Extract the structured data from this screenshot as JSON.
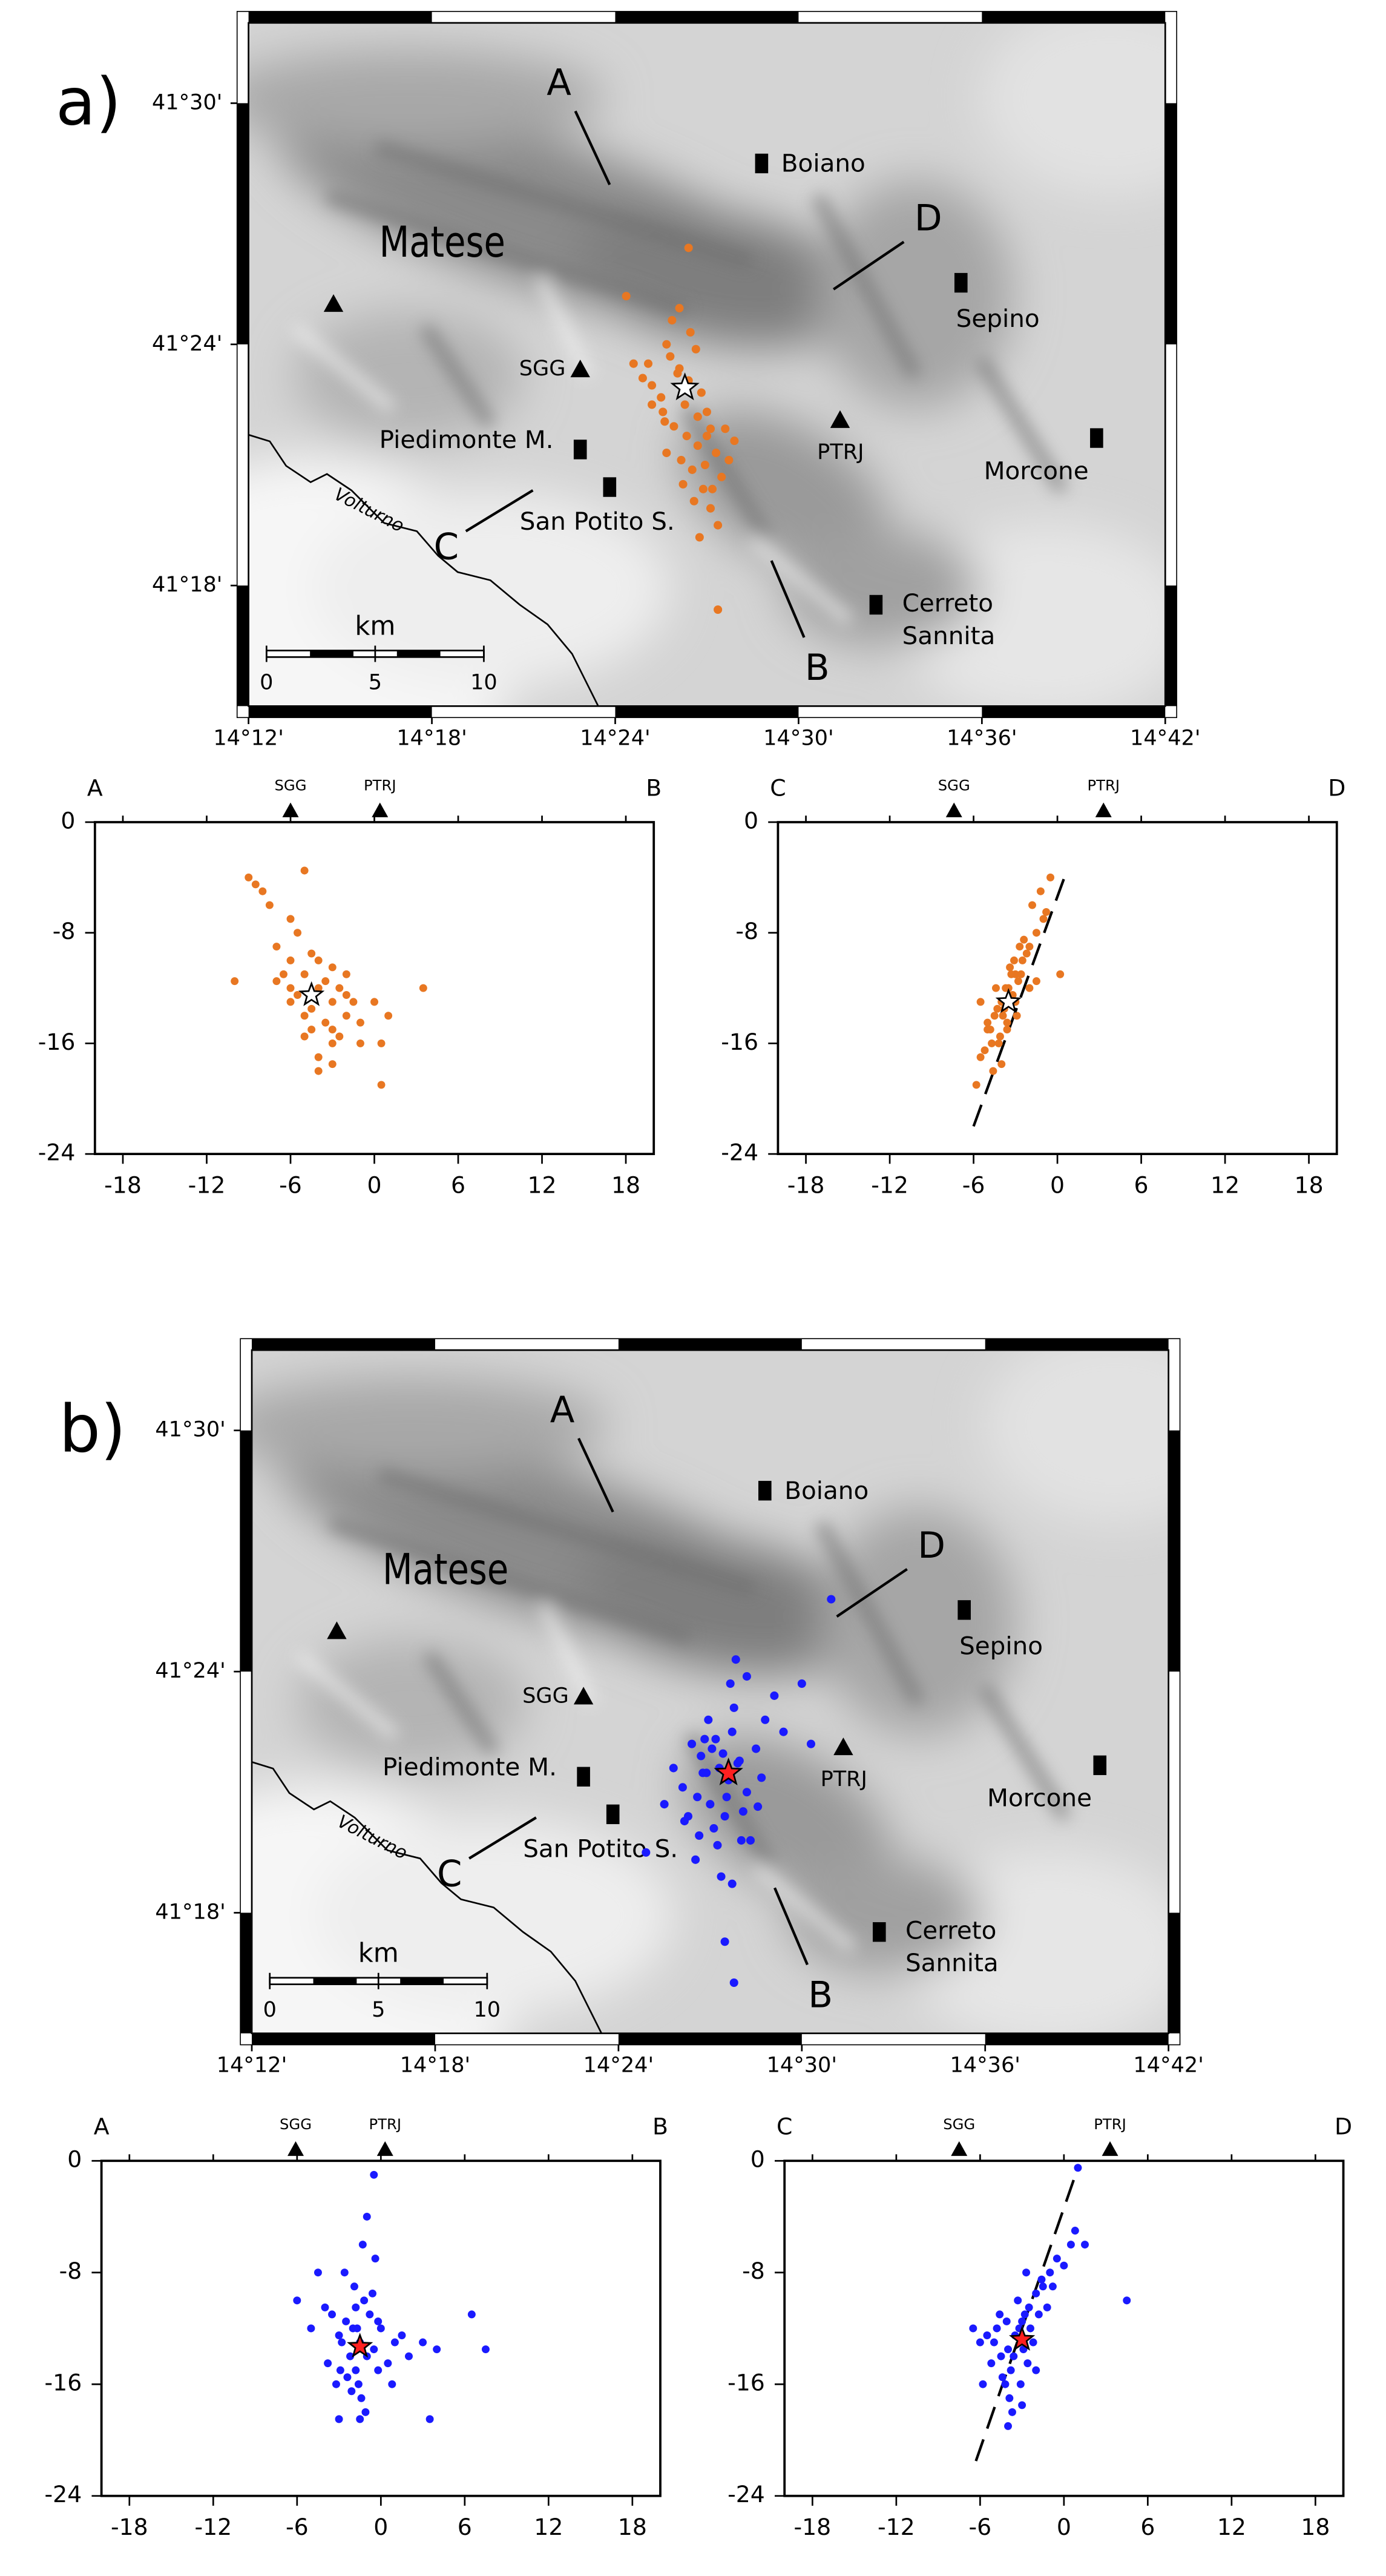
{
  "chart_data": [
    {
      "type": "map",
      "panel_label": "a)",
      "region_label": "Matese",
      "river_label": "Volturno",
      "places": [
        [
          "Boiano"
        ],
        [
          "Sepino"
        ],
        [
          "Morcone"
        ],
        [
          "Cerreto",
          "Sannita"
        ],
        [
          "Piedimonte M."
        ],
        [
          "San Potito S."
        ]
      ],
      "stations": [
        "SGG",
        "PTRJ"
      ],
      "profile_ends": [
        "A",
        "B",
        "C",
        "D"
      ],
      "scale": {
        "title": "km",
        "ticks": [
          0,
          5,
          10
        ]
      },
      "xlim": [
        14.2,
        14.7
      ],
      "ylim": [
        41.25,
        41.5333
      ],
      "xticks": [
        {
          "value": 14.2,
          "label": "14°12'"
        },
        {
          "value": 14.3,
          "label": "14°18'"
        },
        {
          "value": 14.4,
          "label": "14°24'"
        },
        {
          "value": 14.5,
          "label": "14°30'"
        },
        {
          "value": 14.6,
          "label": "14°36'"
        },
        {
          "value": 14.7,
          "label": "14°42'"
        }
      ],
      "yticks": [
        {
          "value": 41.3,
          "label": "41°18'"
        },
        {
          "value": 41.4,
          "label": "41°24'"
        },
        {
          "value": 41.5,
          "label": "41°30'"
        }
      ],
      "events": {
        "color": "#e87722",
        "x": [
          14.43,
          14.44,
          14.425,
          14.445,
          14.45,
          14.435,
          14.42,
          14.455,
          14.442,
          14.428,
          14.448,
          14.438,
          14.46,
          14.418,
          14.432,
          14.452,
          14.445,
          14.436,
          14.458,
          14.441,
          14.426,
          14.447,
          14.434,
          14.462,
          14.415,
          14.439,
          14.45,
          14.443,
          14.431,
          14.456,
          14.42,
          14.437,
          14.465,
          14.444,
          14.449,
          14.427,
          14.453,
          14.41,
          14.446,
          14.44,
          14.435,
          14.452,
          14.428,
          14.406,
          14.456
        ],
        "y": [
          41.395,
          41.385,
          41.378,
          41.37,
          41.362,
          41.39,
          41.383,
          41.355,
          41.348,
          41.4,
          41.34,
          41.375,
          41.365,
          41.392,
          41.366,
          41.332,
          41.358,
          41.352,
          41.345,
          41.405,
          41.372,
          41.38,
          41.388,
          41.352,
          41.386,
          41.362,
          41.372,
          41.335,
          41.41,
          41.325,
          41.375,
          41.342,
          41.36,
          41.398,
          41.35,
          41.368,
          41.34,
          41.392,
          41.32,
          41.44,
          41.415,
          41.365,
          41.355,
          41.42,
          41.29
        ]
      },
      "mainshock": {
        "x": 14.438,
        "y": 41.382,
        "color": "#ffffff"
      }
    },
    {
      "type": "scatter",
      "ends": [
        "A",
        "B"
      ],
      "stations": [
        {
          "name": "SGG",
          "x": -6
        },
        {
          "name": "PTRJ",
          "x": 0.4
        }
      ],
      "xlim": [
        -20,
        20
      ],
      "ylim": [
        -24,
        0
      ],
      "xticks": [
        -18,
        -12,
        -6,
        0,
        6,
        12,
        18
      ],
      "yticks": [
        0,
        -8,
        -16,
        -24
      ],
      "series": [
        {
          "color": "#e87722",
          "x": [
            -4,
            -5,
            -3,
            -6,
            -2,
            -4.5,
            -3.5,
            -5.5,
            -1,
            -7,
            -2.5,
            -4,
            -6.5,
            -3,
            -5,
            -1.5,
            -4.5,
            0,
            -3,
            -8,
            -5.5,
            -2,
            -4,
            -7.5,
            -3.5,
            -6,
            -1,
            -9,
            -2.5,
            -5,
            1,
            -4,
            -6,
            -3,
            -8.5,
            0.5,
            -5,
            -2,
            -7,
            3.5,
            -10,
            -4.5,
            -3,
            0.5,
            -6
          ],
          "y": [
            -12,
            -11,
            -13,
            -10,
            -14,
            -13.5,
            -11.5,
            -12.5,
            -14.5,
            -9,
            -12,
            -10,
            -11,
            -15,
            -14,
            -13,
            -9.5,
            -13,
            -16,
            -5,
            -8,
            -11,
            -17,
            -6,
            -14.5,
            -13,
            -16,
            -4,
            -15.5,
            -15.5,
            -14,
            -18,
            -7,
            -10.5,
            -4.5,
            -16,
            -3.5,
            -12.5,
            -11.5,
            -12,
            -11.5,
            -15,
            -17.5,
            -19,
            -12
          ]
        }
      ],
      "mainshock": {
        "x": -4.5,
        "y": -12.5,
        "color": "#ffffff"
      }
    },
    {
      "type": "scatter",
      "ends": [
        "C",
        "D"
      ],
      "stations": [
        {
          "name": "SGG",
          "x": -7.4
        },
        {
          "name": "PTRJ",
          "x": 3.3
        }
      ],
      "xlim": [
        -20,
        20
      ],
      "ylim": [
        -24,
        0
      ],
      "xticks": [
        -18,
        -12,
        -6,
        0,
        6,
        12,
        18
      ],
      "yticks": [
        0,
        -8,
        -16,
        -24
      ],
      "series": [
        {
          "color": "#e87722",
          "x": [
            -4,
            -3.5,
            -4.5,
            -3,
            -5,
            -3.8,
            -4.2,
            -2.5,
            -5.5,
            -3.2,
            -4.8,
            -2,
            -3.6,
            -4.4,
            -1.5,
            -5.2,
            -3,
            -2.8,
            -4,
            -1,
            -3.4,
            -4.6,
            -2.2,
            -5.8,
            -3.9,
            -1.8,
            -2.6,
            -4.1,
            -0.5,
            -3.7,
            -2.4,
            -4.3,
            -1.2,
            -5,
            -3.1,
            -2,
            -0.8,
            -4.7,
            -3.3,
            -1.5,
            0.2,
            -2.9,
            -5.5,
            -3.6,
            -2.7
          ],
          "y": [
            -13,
            -12,
            -14,
            -11,
            -15,
            -13.5,
            -16,
            -10,
            -17,
            -12.5,
            -15,
            -9,
            -14.5,
            -12,
            -8,
            -16.5,
            -13,
            -11.5,
            -17.5,
            -7,
            -10.5,
            -18,
            -9.5,
            -19,
            -14,
            -6,
            -11,
            -15.5,
            -4,
            -12,
            -8.5,
            -13.5,
            -5,
            -14.5,
            -10,
            -12,
            -6.5,
            -16,
            -11,
            -11.5,
            -11,
            -14,
            -13,
            -15,
            -9
          ]
        }
      ],
      "mainshock": {
        "x": -3.5,
        "y": -13,
        "color": "#ffffff"
      },
      "fault": {
        "x": [
          -6,
          0.5
        ],
        "y": [
          -22,
          -4
        ]
      }
    },
    {
      "type": "map",
      "panel_label": "b)",
      "region_label": "Matese",
      "river_label": "Volturno",
      "places": [
        [
          "Boiano"
        ],
        [
          "Sepino"
        ],
        [
          "Morcone"
        ],
        [
          "Cerreto",
          "Sannita"
        ],
        [
          "Piedimonte M."
        ],
        [
          "San Potito S."
        ]
      ],
      "stations": [
        "SGG",
        "PTRJ"
      ],
      "profile_ends": [
        "A",
        "B",
        "C",
        "D"
      ],
      "scale": {
        "title": "km",
        "ticks": [
          0,
          5,
          10
        ]
      },
      "xlim": [
        14.2,
        14.7
      ],
      "ylim": [
        41.25,
        41.5333
      ],
      "xticks": [
        {
          "value": 14.2,
          "label": "14°12'"
        },
        {
          "value": 14.3,
          "label": "14°18'"
        },
        {
          "value": 14.4,
          "label": "14°24'"
        },
        {
          "value": 14.5,
          "label": "14°30'"
        },
        {
          "value": 14.6,
          "label": "14°36'"
        },
        {
          "value": 14.7,
          "label": "14°42'"
        }
      ],
      "yticks": [
        {
          "value": 41.3,
          "label": "41°18'"
        },
        {
          "value": 41.4,
          "label": "41°24'"
        },
        {
          "value": 41.5,
          "label": "41°30'"
        }
      ],
      "events": {
        "color": "#1a1aff",
        "x": [
          14.455,
          14.46,
          14.445,
          14.47,
          14.45,
          14.44,
          14.465,
          14.458,
          14.448,
          14.475,
          14.435,
          14.462,
          14.452,
          14.468,
          14.443,
          14.48,
          14.457,
          14.43,
          14.472,
          14.447,
          14.463,
          14.454,
          14.438,
          14.485,
          14.449,
          14.466,
          14.459,
          14.442,
          14.478,
          14.425,
          14.461,
          14.451,
          14.49,
          14.444,
          14.47,
          14.456,
          14.436,
          14.5,
          14.453,
          14.464,
          14.415,
          14.505,
          14.467,
          14.446,
          14.476,
          14.458,
          14.516,
          14.463,
          14.462
        ],
        "y": [
          41.36,
          41.355,
          41.365,
          41.35,
          41.345,
          41.37,
          41.362,
          41.34,
          41.358,
          41.368,
          41.352,
          41.375,
          41.335,
          41.342,
          41.348,
          41.38,
          41.366,
          41.36,
          41.33,
          41.372,
          41.385,
          41.328,
          41.34,
          41.39,
          41.38,
          41.363,
          41.348,
          41.322,
          41.356,
          41.345,
          41.395,
          41.368,
          41.375,
          41.332,
          41.398,
          41.315,
          41.338,
          41.395,
          41.372,
          41.405,
          41.325,
          41.37,
          41.33,
          41.358,
          41.344,
          41.288,
          41.43,
          41.271,
          41.312
        ]
      },
      "mainshock": {
        "x": 14.46,
        "y": 41.358,
        "color": "#ff2020"
      }
    },
    {
      "type": "scatter",
      "ends": [
        "A",
        "B"
      ],
      "stations": [
        {
          "name": "SGG",
          "x": -6.1
        },
        {
          "name": "PTRJ",
          "x": 0.3
        }
      ],
      "xlim": [
        -20,
        20
      ],
      "ylim": [
        -24,
        0
      ],
      "xticks": [
        -18,
        -12,
        -6,
        0,
        6,
        12,
        18
      ],
      "yticks": [
        0,
        -8,
        -16,
        -24
      ],
      "series": [
        {
          "color": "#1a1aff",
          "x": [
            -1.5,
            -2,
            -1,
            -2.5,
            -0.5,
            -3,
            0,
            -1.8,
            -1.2,
            -2.2,
            -3.5,
            0.5,
            -1.6,
            -2.8,
            -0.8,
            -4,
            1,
            -1.4,
            -2.4,
            -0.2,
            -5,
            1.5,
            -1.9,
            -3.2,
            -1.1,
            2,
            -2.6,
            -0.6,
            -6,
            3,
            -1.7,
            -3.8,
            -0.4,
            -2.1,
            4,
            -1.3,
            -4.5,
            0.8,
            -2.9,
            6.5,
            -1,
            -0.5,
            -1.5,
            7.5,
            3.5,
            -3,
            -1.8,
            -0.2
          ],
          "y": [
            -13,
            -12,
            -14,
            -11.5,
            -13.5,
            -12.5,
            -12,
            -15,
            -10,
            -14,
            -11,
            -14.5,
            -16,
            -13,
            -11,
            -10.5,
            -13,
            -17,
            -15.5,
            -15,
            -12,
            -12.5,
            -9,
            -16,
            -18,
            -14,
            -8,
            -9.5,
            -10,
            -13,
            -12,
            -14.5,
            -7,
            -16.5,
            -13.5,
            -6,
            -8,
            -16,
            -15,
            -11,
            -4,
            -1,
            -18.5,
            -13.5,
            -18.5,
            -18.5,
            -10.5,
            -11.5
          ]
        }
      ],
      "mainshock": {
        "x": -1.5,
        "y": -13.3,
        "color": "#ff2020"
      }
    },
    {
      "type": "scatter",
      "ends": [
        "C",
        "D"
      ],
      "stations": [
        {
          "name": "SGG",
          "x": -7.5
        },
        {
          "name": "PTRJ",
          "x": 3.3
        }
      ],
      "xlim": [
        -20,
        20
      ],
      "ylim": [
        -24,
        0
      ],
      "xticks": [
        -18,
        -12,
        -6,
        0,
        6,
        12,
        18
      ],
      "yticks": [
        0,
        -8,
        -16,
        -24
      ],
      "series": [
        {
          "color": "#1a1aff",
          "x": [
            -3.5,
            -3,
            -4,
            -2.5,
            -4.5,
            -3.2,
            -3.8,
            -2,
            -5,
            -2.8,
            -4.2,
            -1.5,
            -3.6,
            -4.8,
            -1,
            -5.5,
            -2.2,
            -3.3,
            -6,
            -0.5,
            -2.6,
            -4.4,
            -1.8,
            -3.9,
            -0.8,
            -2.4,
            -5.2,
            -1.2,
            -3.1,
            -4.6,
            0,
            -2.9,
            -6.5,
            -1.6,
            -3.7,
            0.5,
            -2,
            -4.1,
            1,
            -2.7,
            4.5,
            1.5,
            0.8,
            -5.8,
            -4,
            -3
          ],
          "y": [
            -12.5,
            -11.5,
            -13.5,
            -10.5,
            -14,
            -12,
            -15,
            -9.5,
            -13,
            -11,
            -16,
            -9,
            -14,
            -12,
            -8,
            -12.5,
            -13,
            -10,
            -13,
            -7,
            -14.5,
            -15.5,
            -11,
            -17,
            -9,
            -12,
            -14.5,
            -10.5,
            -16,
            -11,
            -7.5,
            -13.5,
            -12,
            -8.5,
            -18,
            -6,
            -15,
            -11.5,
            -0.5,
            -8,
            -10,
            -6,
            -5,
            -16,
            -19,
            -17.5
          ]
        }
      ],
      "mainshock": {
        "x": -3,
        "y": -12.8,
        "color": "#ff2020"
      },
      "fault": {
        "x": [
          -6.3,
          1
        ],
        "y": [
          -21.5,
          -0.5
        ]
      }
    }
  ]
}
